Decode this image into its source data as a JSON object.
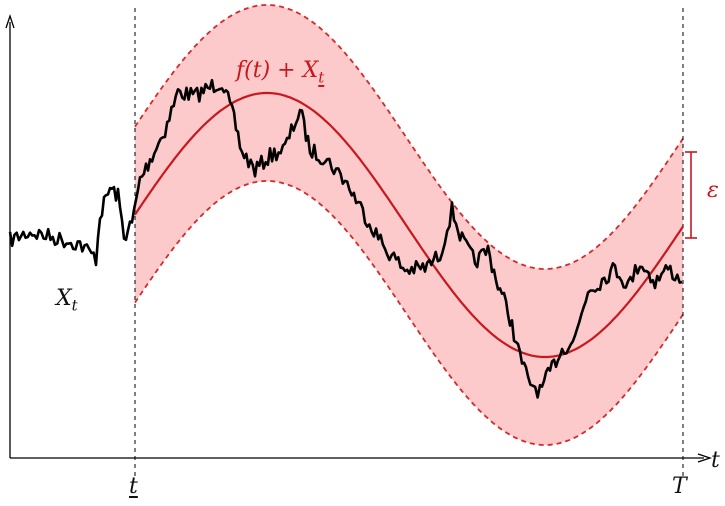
{
  "labels": {
    "curve_label_main": "f(t) + X",
    "curve_label_sub": "t",
    "process_label_main": "X",
    "process_label_sub": "t",
    "epsilon": "ε",
    "time_axis": "t",
    "start_tick": "t",
    "end_tick": "T"
  },
  "colors": {
    "band_fill": "#fccaca",
    "curve": "#c8181e",
    "band_edge": "#d42a2a",
    "process": "#000000",
    "axes": "#000000"
  }
}
